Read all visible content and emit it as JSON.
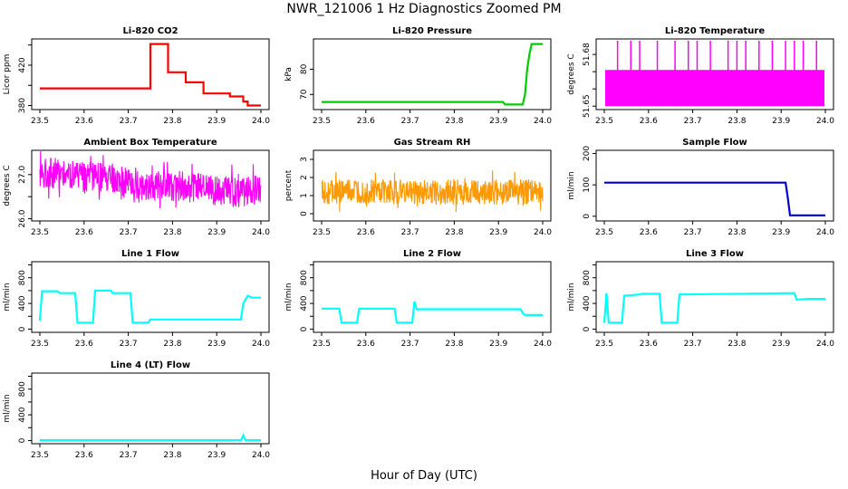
{
  "figure": {
    "title": "NWR_121006  1 Hz Diagnostics Zoomed PM",
    "xlabel": "Hour of Day (UTC)"
  },
  "chart_data": [
    {
      "type": "line",
      "title": "Li-820 CO2",
      "xlabel": "",
      "ylabel": "Licor ppm",
      "color": "#ff0000",
      "xlim": [
        23.5,
        24.0
      ],
      "ylim": [
        376,
        446
      ],
      "xticks": [
        23.5,
        23.6,
        23.7,
        23.8,
        23.9,
        24.0
      ],
      "yticks": [
        380,
        400,
        420,
        440
      ],
      "ytick_labels": [
        "380",
        "",
        "420",
        ""
      ],
      "x": [
        23.5,
        23.75,
        23.75,
        23.79,
        23.79,
        23.83,
        23.83,
        23.87,
        23.87,
        23.93,
        23.93,
        23.96,
        23.96,
        23.97,
        23.97,
        24.0
      ],
      "y": [
        397,
        397,
        441,
        441,
        413,
        413,
        403,
        403,
        392,
        392,
        389,
        389,
        384,
        384,
        380,
        380
      ]
    },
    {
      "type": "line",
      "title": "Li-820 Pressure",
      "xlabel": "",
      "ylabel": "kPa",
      "color": "#00cc00",
      "xlim": [
        23.5,
        24.0
      ],
      "ylim": [
        64,
        92
      ],
      "xticks": [
        23.5,
        23.6,
        23.7,
        23.8,
        23.9,
        24.0
      ],
      "yticks": [
        70,
        80
      ],
      "ytick_labels": [
        "70",
        "80"
      ],
      "x": [
        23.5,
        23.91,
        23.915,
        23.955,
        23.96,
        23.965,
        23.97,
        23.975,
        24.0
      ],
      "y": [
        67,
        67,
        66,
        66,
        70,
        80,
        86,
        90,
        90
      ]
    },
    {
      "type": "band",
      "title": "Li-820 Temperature",
      "xlabel": "",
      "ylabel": "degrees C",
      "color": "#ff00ff",
      "xlim": [
        23.5,
        24.0
      ],
      "ylim": [
        51.648,
        51.689
      ],
      "xticks": [
        23.5,
        23.6,
        23.7,
        23.8,
        23.9,
        24.0
      ],
      "yticks": [
        51.65,
        51.66,
        51.67,
        51.68
      ],
      "ytick_labels": [
        "51.65",
        "",
        "",
        "51.68"
      ],
      "band": [
        51.65,
        51.671
      ],
      "spikes": [
        23.53,
        23.56,
        23.58,
        23.62,
        23.66,
        23.69,
        23.71,
        23.74,
        23.78,
        23.8,
        23.82,
        23.85,
        23.88,
        23.91,
        23.93,
        23.95,
        23.98
      ]
    },
    {
      "type": "noise",
      "title": "Ambient Box Temperature",
      "xlabel": "",
      "ylabel": "degrees C",
      "color": "#ff00ff",
      "xlim": [
        23.5,
        24.0
      ],
      "ylim": [
        25.95,
        27.55
      ],
      "xticks": [
        23.5,
        23.6,
        23.7,
        23.8,
        23.9,
        24.0
      ],
      "yticks": [
        26.0,
        26.5,
        27.0
      ],
      "ytick_labels": [
        "26.0",
        "",
        "27.0"
      ],
      "x": [
        23.5,
        23.55,
        23.6,
        23.65,
        23.7,
        23.75,
        23.8,
        23.85,
        23.9,
        23.95,
        24.0
      ],
      "y": [
        27.05,
        27.05,
        26.95,
        26.9,
        26.8,
        26.75,
        26.75,
        26.7,
        26.65,
        26.6,
        26.65
      ],
      "spread": 0.35
    },
    {
      "type": "noise",
      "title": "Gas Stream RH",
      "xlabel": "",
      "ylabel": "percent",
      "color": "#ff9900",
      "xlim": [
        23.5,
        24.0
      ],
      "ylim": [
        -0.4,
        3.5
      ],
      "xticks": [
        23.5,
        23.6,
        23.7,
        23.8,
        23.9,
        24.0
      ],
      "yticks": [
        0,
        1,
        2,
        3
      ],
      "ytick_labels": [
        "0",
        "1",
        "2",
        "3"
      ],
      "x": [
        23.5,
        23.6,
        23.7,
        23.8,
        23.9,
        24.0
      ],
      "y": [
        1.2,
        1.2,
        1.2,
        1.2,
        1.2,
        1.2
      ],
      "spread": 0.7
    },
    {
      "type": "line",
      "title": "Sample Flow",
      "xlabel": "",
      "ylabel": "ml/min",
      "color": "#0000cc",
      "xlim": [
        23.5,
        24.0
      ],
      "ylim": [
        -15,
        210
      ],
      "xticks": [
        23.5,
        23.6,
        23.7,
        23.8,
        23.9,
        24.0
      ],
      "yticks": [
        0,
        100,
        200
      ],
      "ytick_labels": [
        "0",
        "100",
        "200"
      ],
      "x": [
        23.5,
        23.91,
        23.915,
        23.92,
        24.0
      ],
      "y": [
        107,
        107,
        60,
        3,
        3
      ]
    },
    {
      "type": "line",
      "title": "Line 1 Flow",
      "xlabel": "",
      "ylabel": "ml/min",
      "color": "#00ffff",
      "xlim": [
        23.5,
        24.0
      ],
      "ylim": [
        -50,
        1050
      ],
      "xticks": [
        23.5,
        23.6,
        23.7,
        23.8,
        23.9,
        24.0
      ],
      "yticks": [
        0,
        200,
        400,
        600,
        800,
        1000
      ],
      "ytick_labels": [
        "0",
        "",
        "400",
        "",
        "800",
        ""
      ],
      "x": [
        23.5,
        23.505,
        23.54,
        23.545,
        23.58,
        23.585,
        23.62,
        23.625,
        23.66,
        23.665,
        23.705,
        23.71,
        23.745,
        23.75,
        23.955,
        23.96,
        23.97,
        23.98,
        24.0
      ],
      "y": [
        130,
        590,
        590,
        560,
        560,
        100,
        100,
        600,
        600,
        560,
        560,
        100,
        100,
        150,
        150,
        400,
        520,
        490,
        490
      ]
    },
    {
      "type": "line",
      "title": "Line 2 Flow",
      "xlabel": "",
      "ylabel": "ml/min",
      "color": "#00ffff",
      "xlim": [
        23.5,
        24.0
      ],
      "ylim": [
        -50,
        1050
      ],
      "xticks": [
        23.5,
        23.6,
        23.7,
        23.8,
        23.9,
        24.0
      ],
      "yticks": [
        0,
        200,
        400,
        600,
        800,
        1000
      ],
      "ytick_labels": [
        "0",
        "",
        "400",
        "",
        "800",
        ""
      ],
      "x": [
        23.5,
        23.54,
        23.545,
        23.58,
        23.585,
        23.665,
        23.67,
        23.705,
        23.71,
        23.715,
        23.95,
        23.955,
        23.96,
        24.0
      ],
      "y": [
        320,
        320,
        100,
        100,
        320,
        320,
        100,
        100,
        430,
        310,
        310,
        250,
        220,
        220
      ]
    },
    {
      "type": "line",
      "title": "Line 3 Flow",
      "xlabel": "",
      "ylabel": "ml/min",
      "color": "#00ffff",
      "xlim": [
        23.5,
        24.0
      ],
      "ylim": [
        -50,
        1050
      ],
      "xticks": [
        23.5,
        23.6,
        23.7,
        23.8,
        23.9,
        24.0
      ],
      "yticks": [
        0,
        200,
        400,
        600,
        800,
        1000
      ],
      "ytick_labels": [
        "0",
        "",
        "400",
        "",
        "800",
        ""
      ],
      "x": [
        23.5,
        23.505,
        23.51,
        23.54,
        23.545,
        23.58,
        23.585,
        23.625,
        23.63,
        23.665,
        23.67,
        23.93,
        23.935,
        23.96,
        24.0
      ],
      "y": [
        100,
        560,
        100,
        100,
        520,
        540,
        550,
        550,
        100,
        100,
        540,
        560,
        460,
        470,
        470
      ]
    },
    {
      "type": "line",
      "title": "Line 4 (LT) Flow",
      "xlabel": "",
      "ylabel": "ml/min",
      "color": "#00ffff",
      "xlim": [
        23.5,
        24.0
      ],
      "ylim": [
        -50,
        1050
      ],
      "xticks": [
        23.5,
        23.6,
        23.7,
        23.8,
        23.9,
        24.0
      ],
      "yticks": [
        0,
        200,
        400,
        600,
        800,
        1000
      ],
      "ytick_labels": [
        "0",
        "",
        "400",
        "",
        "800",
        ""
      ],
      "x": [
        23.5,
        23.955,
        23.96,
        23.965,
        24.0
      ],
      "y": [
        5,
        5,
        80,
        5,
        5
      ]
    }
  ]
}
